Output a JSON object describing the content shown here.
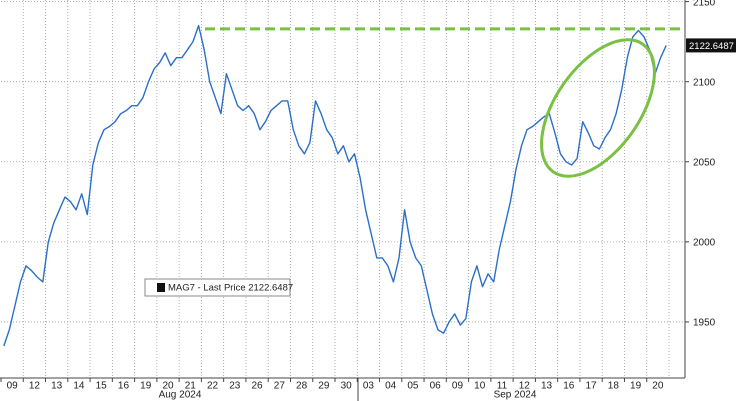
{
  "chart_data": {
    "type": "line",
    "categories": [
      "09",
      "12",
      "13",
      "14",
      "15",
      "16",
      "19",
      "20",
      "21",
      "22",
      "23",
      "26",
      "27",
      "28",
      "29",
      "30",
      "03",
      "04",
      "05",
      "06",
      "09",
      "10",
      "11",
      "12",
      "13",
      "16",
      "17",
      "18",
      "19",
      "20"
    ],
    "month_labels": [
      "Aug 2024",
      "Sep 2024"
    ],
    "series": [
      {
        "name": "MAG7 - Last Price 2122.6487",
        "color": "#2a6fc9",
        "values": [
          [
            1935,
            1945,
            1960,
            1975
          ],
          [
            1985,
            1982,
            1978,
            1975
          ],
          [
            2000,
            2012,
            2020,
            2028
          ],
          [
            2025,
            2020,
            2030,
            2017
          ],
          [
            2048,
            2062,
            2070,
            2072
          ],
          [
            2075,
            2080,
            2082,
            2085
          ],
          [
            2085,
            2090,
            2100,
            2108
          ],
          [
            2112,
            2118,
            2110,
            2115
          ],
          [
            2115,
            2120,
            2125,
            2135
          ],
          [
            2120,
            2100,
            2090,
            2080
          ],
          [
            2105,
            2095,
            2085,
            2082
          ],
          [
            2085,
            2080,
            2070,
            2075
          ],
          [
            2082,
            2085,
            2088,
            2088
          ],
          [
            2070,
            2060,
            2055,
            2062
          ],
          [
            2088,
            2080,
            2070,
            2065
          ],
          [
            2055,
            2060,
            2050,
            2055
          ],
          [
            2040,
            2020,
            2005,
            1990
          ],
          [
            1990,
            1985,
            1975,
            1990
          ],
          [
            2020,
            2000,
            1990,
            1985
          ],
          [
            1970,
            1955,
            1945,
            1943
          ],
          [
            1950,
            1955,
            1948,
            1952
          ],
          [
            1975,
            1985,
            1972,
            1980
          ],
          [
            1975,
            1995,
            2010,
            2025
          ],
          [
            2045,
            2060,
            2070,
            2072
          ],
          [
            2075,
            2078,
            2080,
            2068
          ],
          [
            2055,
            2050,
            2048,
            2052
          ],
          [
            2075,
            2068,
            2060,
            2058
          ],
          [
            2065,
            2070,
            2080,
            2095
          ],
          [
            2115,
            2128,
            2132,
            2128
          ],
          [
            2120,
            2105,
            2115,
            2122.6487
          ]
        ]
      }
    ],
    "last_value": 2122.6487,
    "reference_line": {
      "value": 2133,
      "color": "#7ac143"
    },
    "ylim": [
      1915,
      2151
    ],
    "yticks": [
      1950,
      2000,
      2050,
      2100,
      2150
    ],
    "grid": true
  }
}
